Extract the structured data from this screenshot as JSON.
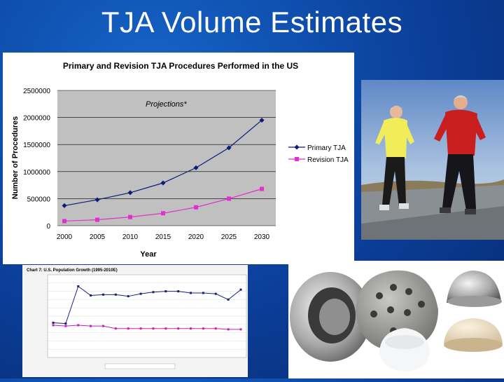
{
  "slide": {
    "title": "TJA Volume Estimates"
  },
  "chart_data": [
    {
      "type": "line",
      "title": "Primary and Revision TJA Procedures Performed in the US",
      "xlabel": "Year",
      "ylabel": "Number of Procedures",
      "annotation": "Projections*",
      "x": [
        2000,
        2005,
        2010,
        2015,
        2020,
        2025,
        2030
      ],
      "x_ticks": [
        "2000",
        "2005",
        "2010",
        "2015",
        "2020",
        "2025",
        "2030"
      ],
      "y_ticks": [
        "0",
        "500000",
        "1000000",
        "1500000",
        "2000000",
        "2500000"
      ],
      "ylim": [
        0,
        2500000
      ],
      "grid": true,
      "legend": "right",
      "series": [
        {
          "name": "Primary TJA",
          "color": "#0a1a7a",
          "marker": "diamond",
          "values": [
            370000,
            480000,
            610000,
            790000,
            1070000,
            1440000,
            1950000
          ]
        },
        {
          "name": "Revision TJA",
          "color": "#e030d0",
          "marker": "square",
          "values": [
            85000,
            110000,
            160000,
            230000,
            340000,
            500000,
            680000
          ]
        }
      ]
    },
    {
      "type": "line",
      "title": "Chart 7: U.S. Population Growth (1995-2010E)",
      "grid": true,
      "series": [
        {
          "color": "#1a1f7a",
          "values": [
            0.42,
            0.41,
            0.86,
            0.75,
            0.76,
            0.76,
            0.74,
            0.77,
            0.79,
            0.8,
            0.8,
            0.78,
            0.78,
            0.77,
            0.7,
            0.82
          ]
        },
        {
          "color": "#c020c0",
          "values": [
            0.39,
            0.38,
            0.39,
            0.38,
            0.38,
            0.35,
            0.35,
            0.35,
            0.35,
            0.35,
            0.35,
            0.35,
            0.35,
            0.35,
            0.34,
            0.34
          ]
        }
      ]
    }
  ]
}
